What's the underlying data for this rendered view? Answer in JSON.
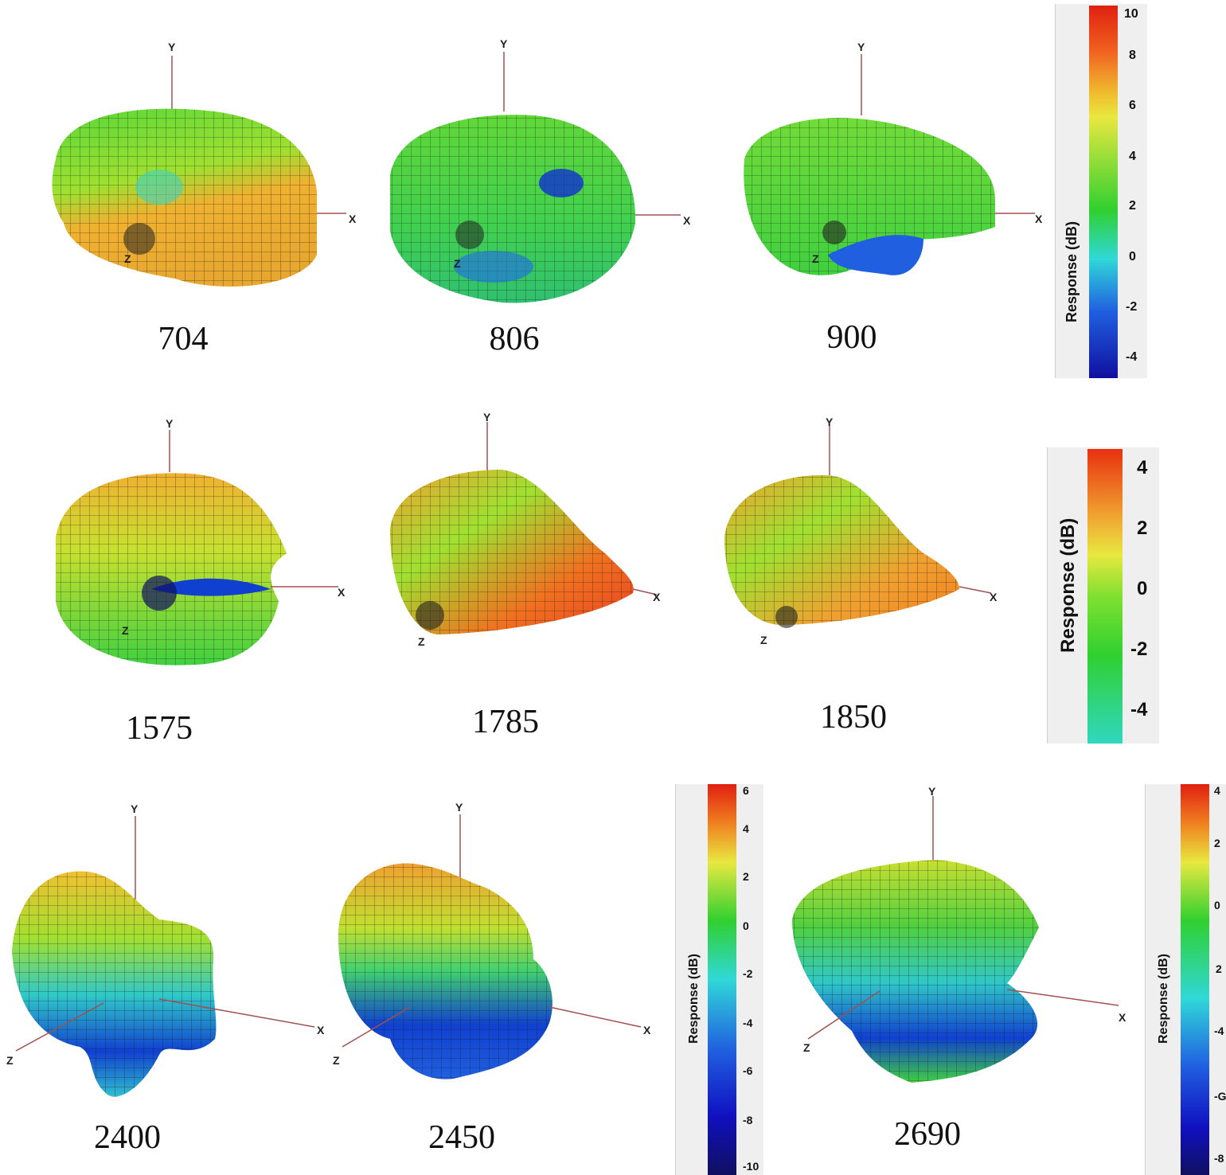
{
  "plots": [
    {
      "label": "704",
      "axes": {
        "x": "X",
        "y": "Y",
        "z": "Z"
      }
    },
    {
      "label": "806",
      "axes": {
        "x": "X",
        "y": "Y",
        "z": "Z"
      }
    },
    {
      "label": "900",
      "axes": {
        "x": "X",
        "y": "Y",
        "z": "Z"
      }
    },
    {
      "label": "1575",
      "axes": {
        "x": "X",
        "y": "Y",
        "z": "Z"
      }
    },
    {
      "label": "1785",
      "axes": {
        "x": "X",
        "y": "Y",
        "z": "Z"
      }
    },
    {
      "label": "1850",
      "axes": {
        "x": "X",
        "y": "Y",
        "z": "Z"
      }
    },
    {
      "label": "2400",
      "axes": {
        "x": "X",
        "y": "Y",
        "z": "Z"
      }
    },
    {
      "label": "2450",
      "axes": {
        "x": "X",
        "y": "Y",
        "z": "Z"
      }
    },
    {
      "label": "2690",
      "axes": {
        "x": "X",
        "y": "Y",
        "z": "Z"
      }
    }
  ],
  "colorbars": [
    {
      "title": "Response (dB)",
      "ticks": [
        "10",
        "8",
        "6",
        "4",
        "2",
        "0",
        "-2",
        "-4"
      ]
    },
    {
      "title": "Response (dB)",
      "ticks": [
        "4",
        "2",
        "0",
        "-2",
        "-4"
      ]
    },
    {
      "title": "Response (dB)",
      "ticks": [
        "6",
        "4",
        "2",
        "0",
        "-2",
        "-4",
        "-6",
        "-8",
        "-10"
      ]
    },
    {
      "title": "Response (dB)",
      "ticks": [
        "4",
        "2",
        "0",
        "2",
        "-4",
        "-G",
        "-8"
      ]
    }
  ],
  "colors": {
    "green": "#33cc33",
    "yellow": "#e6e633",
    "orange": "#f0a030",
    "red": "#e84020",
    "cyan": "#33dddd",
    "blue": "#1030d0",
    "dark_blue": "#101070",
    "axis": "#a05050"
  }
}
